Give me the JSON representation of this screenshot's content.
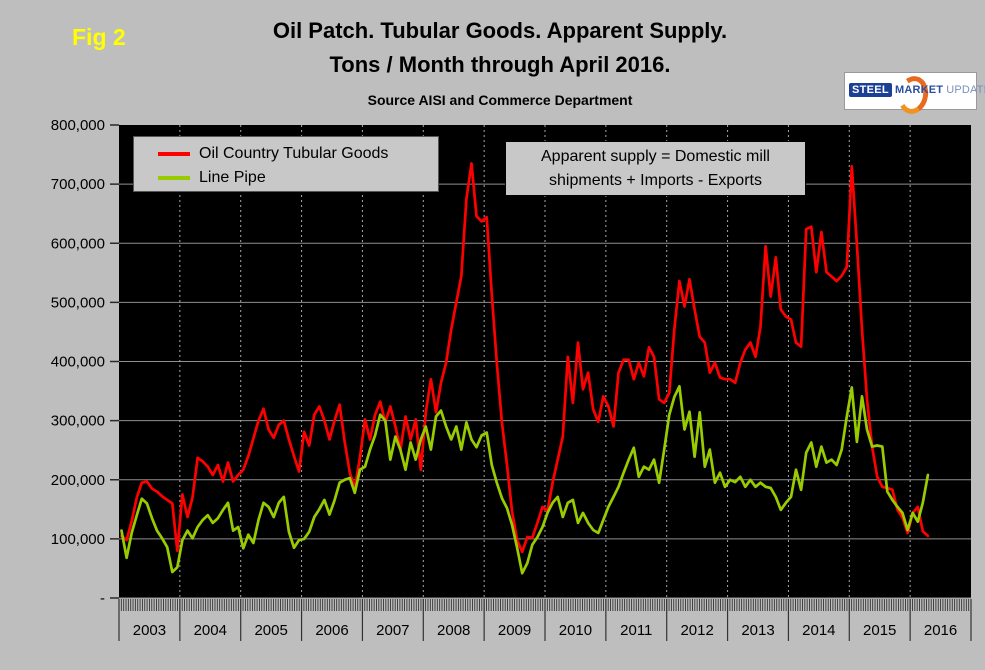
{
  "figure_label": "Fig 2",
  "title": {
    "line1": "Oil Patch. Tubular Goods. Apparent Supply.",
    "line2": "Tons / Month through April 2016."
  },
  "subtitle": "Source AISI and Commerce Department",
  "logo": {
    "steel": "STEEL",
    "market": "MARKET",
    "update": "UPDATE"
  },
  "annotation": {
    "line1": "Apparent supply = Domestic mill",
    "line2": "shipments + Imports - Exports"
  },
  "legend": [
    {
      "label": "Oil Country Tubular Goods",
      "color": "#ff0000"
    },
    {
      "label": "Line Pipe",
      "color": "#99cc00"
    }
  ],
  "colors": {
    "background": "#bebebe",
    "plot_background": "#000000",
    "gridline": "#8f8f8f",
    "year_dash": "#a8a8a8",
    "tick": "#2a2a2a",
    "octg": "#ff0000",
    "line_pipe": "#99cc00",
    "fig_label": "#ffff00"
  },
  "chart_data": {
    "type": "line",
    "title": "Oil Patch. Tubular Goods. Apparent Supply. Tons / Month through April 2016.",
    "xlabel": "",
    "ylabel": "",
    "ylim": [
      0,
      800000
    ],
    "grid": "horizontal solid every 100,000; vertical dashed at year boundaries",
    "legend_position": "top-left",
    "x_axis_years": [
      "2003",
      "2004",
      "2005",
      "2006",
      "2007",
      "2008",
      "2009",
      "2010",
      "2011",
      "2012",
      "2013",
      "2014",
      "2015",
      "2016"
    ],
    "x_frequency": "monthly",
    "x_first_month": "Jan 2003",
    "x_last_month": "Apr 2016",
    "y_tick_labels": [
      "800,000",
      "700,000",
      "600,000",
      "500,000",
      "400,000",
      "300,000",
      "200,000",
      "100,000",
      "-"
    ],
    "y_tick_values": [
      800000,
      700000,
      600000,
      500000,
      400000,
      300000,
      200000,
      100000,
      0
    ],
    "series": [
      {
        "name": "Oil Country Tubular Goods",
        "color": "#ff0000",
        "values": [
          105000,
          98000,
          130000,
          170000,
          195000,
          197000,
          185000,
          180000,
          172000,
          166000,
          160000,
          80000,
          175000,
          137000,
          170000,
          237000,
          231000,
          222000,
          208000,
          225000,
          197000,
          229000,
          197000,
          208000,
          217000,
          240000,
          270000,
          300000,
          320000,
          285000,
          271000,
          293000,
          300000,
          268000,
          240000,
          214000,
          281000,
          258000,
          310000,
          324000,
          300000,
          268000,
          300000,
          327000,
          264000,
          212000,
          186000,
          237000,
          302000,
          268000,
          310000,
          332000,
          297000,
          324000,
          290000,
          251000,
          307000,
          268000,
          302000,
          217000,
          314000,
          370000,
          314000,
          364000,
          398000,
          454000,
          500000,
          544000,
          675000,
          735000,
          646000,
          637000,
          644000,
          513000,
          398000,
          297000,
          225000,
          147000,
          98000,
          78000,
          103000,
          102000,
          127000,
          154000,
          147000,
          195000,
          234000,
          273000,
          408000,
          330000,
          432000,
          353000,
          381000,
          319000,
          298000,
          341000,
          324000,
          290000,
          381000,
          403000,
          403000,
          370000,
          398000,
          375000,
          424000,
          408000,
          336000,
          330000,
          347000,
          454000,
          536000,
          493000,
          539000,
          488000,
          442000,
          432000,
          381000,
          398000,
          373000,
          370000,
          370000,
          364000,
          398000,
          420000,
          432000,
          408000,
          459000,
          595000,
          510000,
          576000,
          488000,
          476000,
          471000,
          432000,
          425000,
          624000,
          628000,
          551000,
          619000,
          551000,
          544000,
          536000,
          545000,
          560000,
          730000,
          598000,
          454000,
          336000,
          256000,
          205000,
          188000,
          186000,
          183000,
          149000,
          136000,
          110000,
          144000,
          154000,
          113000,
          105000
        ]
      },
      {
        "name": "Line Pipe",
        "color": "#99cc00",
        "values": [
          114000,
          68000,
          110000,
          140000,
          168000,
          160000,
          135000,
          114000,
          101000,
          86000,
          44000,
          52000,
          98000,
          114000,
          101000,
          120000,
          132000,
          140000,
          127000,
          135000,
          149000,
          161000,
          114000,
          120000,
          84000,
          107000,
          93000,
          132000,
          161000,
          154000,
          137000,
          161000,
          171000,
          112000,
          85000,
          98000,
          100000,
          112000,
          137000,
          150000,
          166000,
          141000,
          165000,
          195000,
          200000,
          203000,
          178000,
          217000,
          222000,
          251000,
          275000,
          310000,
          300000,
          234000,
          273000,
          250000,
          217000,
          263000,
          234000,
          268000,
          290000,
          251000,
          307000,
          317000,
          290000,
          268000,
          290000,
          251000,
          297000,
          268000,
          255000,
          275000,
          280000,
          225000,
          195000,
          169000,
          152000,
          124000,
          85000,
          42000,
          59000,
          90000,
          103000,
          120000,
          144000,
          161000,
          171000,
          137000,
          161000,
          166000,
          127000,
          144000,
          127000,
          115000,
          110000,
          132000,
          154000,
          171000,
          188000,
          212000,
          234000,
          254000,
          205000,
          222000,
          217000,
          234000,
          195000,
          251000,
          310000,
          340000,
          358000,
          285000,
          315000,
          239000,
          314000,
          222000,
          251000,
          195000,
          212000,
          188000,
          200000,
          196000,
          205000,
          188000,
          200000,
          188000,
          195000,
          188000,
          186000,
          171000,
          149000,
          161000,
          171000,
          217000,
          183000,
          246000,
          263000,
          222000,
          256000,
          229000,
          234000,
          225000,
          251000,
          307000,
          356000,
          264000,
          341000,
          285000,
          256000,
          258000,
          256000,
          180000,
          166000,
          154000,
          144000,
          115000,
          144000,
          129000,
          161000,
          208000
        ]
      }
    ]
  }
}
